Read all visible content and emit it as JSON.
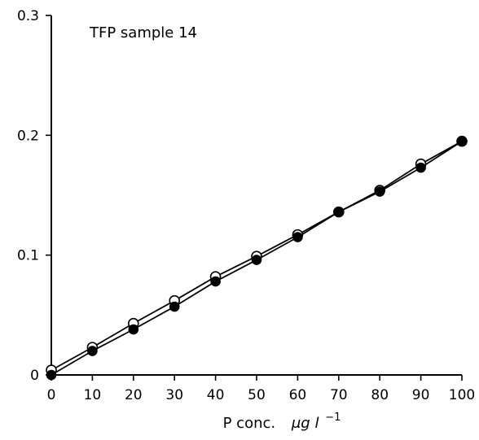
{
  "chart_data": {
    "type": "scatter",
    "title": "",
    "annotation": "TFP sample 14",
    "xlabel_parts": [
      "P conc.",
      "μg l",
      "−1"
    ],
    "ylabel": "",
    "xlim": [
      0,
      100
    ],
    "ylim": [
      0,
      0.3
    ],
    "x_ticks": [
      0,
      10,
      20,
      30,
      40,
      50,
      60,
      70,
      80,
      90,
      100
    ],
    "x_tick_labels": [
      "0",
      "10",
      "20",
      "30",
      "40",
      "50",
      "60",
      "70",
      "80",
      "90",
      "100"
    ],
    "y_ticks": [
      0,
      0.1,
      0.2,
      0.3
    ],
    "y_tick_labels": [
      "0",
      "0.1",
      "0.2",
      "0.3"
    ],
    "grid": false,
    "legend": "none",
    "x": [
      0,
      10,
      20,
      30,
      40,
      50,
      60,
      70,
      80,
      90,
      100
    ],
    "series": [
      {
        "marker": "open-circle",
        "values": [
          0.004,
          0.023,
          0.043,
          0.062,
          0.082,
          0.099,
          0.117,
          0.136,
          0.154,
          0.176,
          0.195
        ]
      },
      {
        "marker": "filled-circle",
        "values": [
          0.0,
          0.02,
          0.038,
          0.057,
          0.078,
          0.096,
          0.115,
          0.136,
          0.153,
          0.173,
          0.195
        ]
      }
    ]
  }
}
